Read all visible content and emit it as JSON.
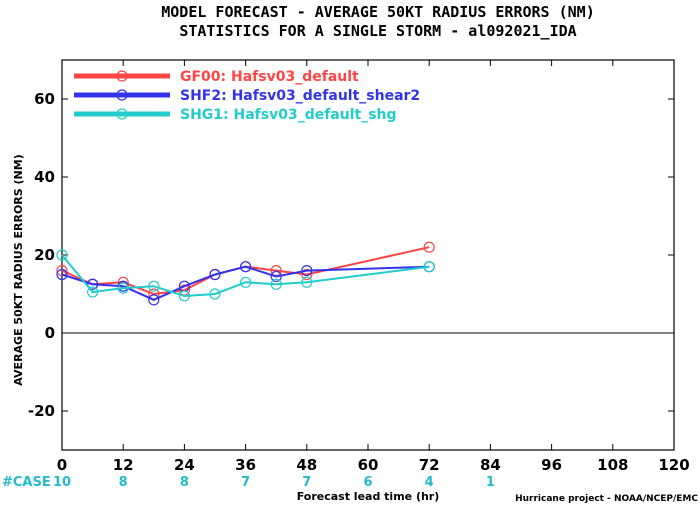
{
  "chart_data": {
    "type": "line",
    "title": "MODEL FORECAST - AVERAGE 50KT RADIUS ERRORS (NM)",
    "subtitle": "STATISTICS FOR A SINGLE STORM - al092021_IDA",
    "xlabel": "Forecast lead time (hr)",
    "ylabel": "AVERAGE 50KT RADIUS ERRORS (NM)",
    "xlim": [
      0,
      120
    ],
    "ylim": [
      -30,
      70
    ],
    "xticks": [
      0,
      12,
      24,
      36,
      48,
      60,
      72,
      84,
      96,
      108,
      120
    ],
    "yticks": [
      -20,
      0,
      20,
      40,
      60
    ],
    "zero_line": true,
    "legend_position": "top-left",
    "series": [
      {
        "name": "GF00: Hafsv03_default",
        "color": "#ff4444",
        "x": [
          0,
          6,
          12,
          18,
          24,
          30,
          36,
          42,
          48,
          72
        ],
        "y": [
          16,
          12.5,
          13,
          10,
          11,
          15,
          17,
          16,
          15,
          22
        ]
      },
      {
        "name": "SHF2: Hafsv03_default_shear2",
        "color": "#3333ee",
        "x": [
          0,
          6,
          12,
          18,
          24,
          30,
          36,
          42,
          48,
          72
        ],
        "y": [
          15,
          12.5,
          12,
          8.5,
          12,
          15,
          17,
          14.5,
          16,
          17
        ]
      },
      {
        "name": "SHG1: Hafsv03_default_shg",
        "color": "#22cccc",
        "x": [
          0,
          6,
          12,
          18,
          24,
          30,
          36,
          42,
          48,
          72
        ],
        "y": [
          20,
          10.5,
          11.5,
          12,
          9.5,
          10,
          13,
          12.5,
          13,
          17
        ]
      }
    ],
    "case_label": "#CASE",
    "case_color": "#22bbcc",
    "cases": [
      {
        "x": 0,
        "n": "10"
      },
      {
        "x": 12,
        "n": "8"
      },
      {
        "x": 24,
        "n": "8"
      },
      {
        "x": 36,
        "n": "7"
      },
      {
        "x": 48,
        "n": "7"
      },
      {
        "x": 60,
        "n": "6"
      },
      {
        "x": 72,
        "n": "4"
      },
      {
        "x": 84,
        "n": "1"
      }
    ]
  },
  "credit": "Hurricane project - NOAA/NCEP/EMC"
}
